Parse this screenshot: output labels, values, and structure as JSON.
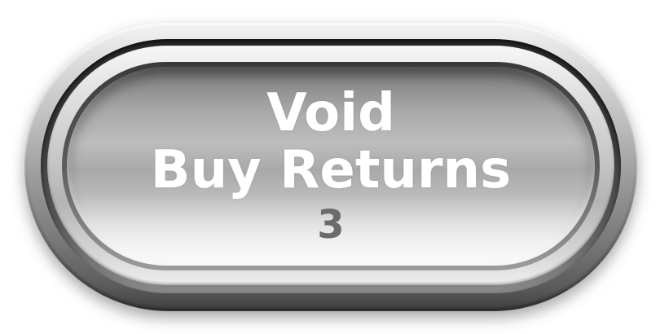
{
  "button": {
    "line1": "Void",
    "line2": "Buy Returns",
    "count": "3"
  }
}
